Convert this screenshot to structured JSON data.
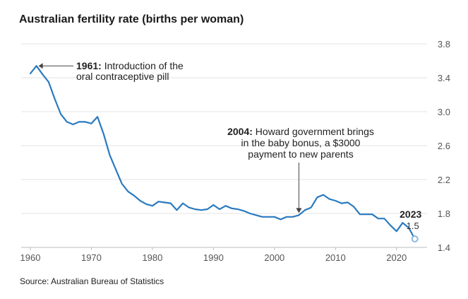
{
  "chart_data": {
    "type": "line",
    "title": "Australian fertility rate (births per woman)",
    "source": "Source: Australian Bureau of Statistics",
    "xlabel": "",
    "ylabel": "",
    "xlim": [
      1958.5,
      2025
    ],
    "ylim": [
      1.4,
      3.8
    ],
    "x_ticks": [
      1960,
      1970,
      1980,
      1990,
      2000,
      2010,
      2020
    ],
    "y_ticks": [
      1.4,
      1.8,
      2.2,
      2.6,
      3.0,
      3.4,
      3.8
    ],
    "y_axis_side": "right",
    "grid": "horizontal",
    "color": "#2a7ac0",
    "series": [
      {
        "x": [
          1960,
          1961,
          1962,
          1963,
          1964,
          1965,
          1966,
          1967,
          1968,
          1969,
          1970,
          1971,
          1972,
          1973,
          1974,
          1975,
          1976,
          1977,
          1978,
          1979,
          1980,
          1981,
          1982,
          1983,
          1984,
          1985,
          1986,
          1987,
          1988,
          1989,
          1990,
          1991,
          1992,
          1993,
          1994,
          1995,
          1996,
          1997,
          1998,
          1999,
          2000,
          2001,
          2002,
          2003,
          2004,
          2005,
          2006,
          2007,
          2008,
          2009,
          2010,
          2011,
          2012,
          2013,
          2014,
          2015,
          2016,
          2017,
          2018,
          2019,
          2020,
          2021,
          2022,
          2023
        ],
        "y": [
          3.45,
          3.54,
          3.44,
          3.35,
          3.15,
          2.97,
          2.88,
          2.85,
          2.88,
          2.88,
          2.86,
          2.94,
          2.74,
          2.49,
          2.32,
          2.15,
          2.06,
          2.01,
          1.95,
          1.91,
          1.89,
          1.94,
          1.93,
          1.92,
          1.84,
          1.92,
          1.87,
          1.85,
          1.84,
          1.85,
          1.9,
          1.85,
          1.89,
          1.86,
          1.85,
          1.83,
          1.8,
          1.78,
          1.76,
          1.76,
          1.76,
          1.73,
          1.76,
          1.76,
          1.78,
          1.84,
          1.87,
          1.99,
          2.02,
          1.97,
          1.95,
          1.92,
          1.93,
          1.88,
          1.79,
          1.79,
          1.79,
          1.74,
          1.74,
          1.66,
          1.59,
          1.69,
          1.63,
          1.5
        ]
      }
    ],
    "annotations": [
      {
        "bold": "1961:",
        "lines": [
          "Introduction of the",
          "oral contraceptive pill"
        ],
        "x": 1961,
        "y": 3.54
      },
      {
        "bold": "2004:",
        "lines": [
          "Howard government brings",
          "in the baby bonus, a $3000",
          "payment to new parents"
        ],
        "x": 2004,
        "y": 1.78
      }
    ],
    "end_label": {
      "year": "2023",
      "value": "1.5"
    }
  }
}
